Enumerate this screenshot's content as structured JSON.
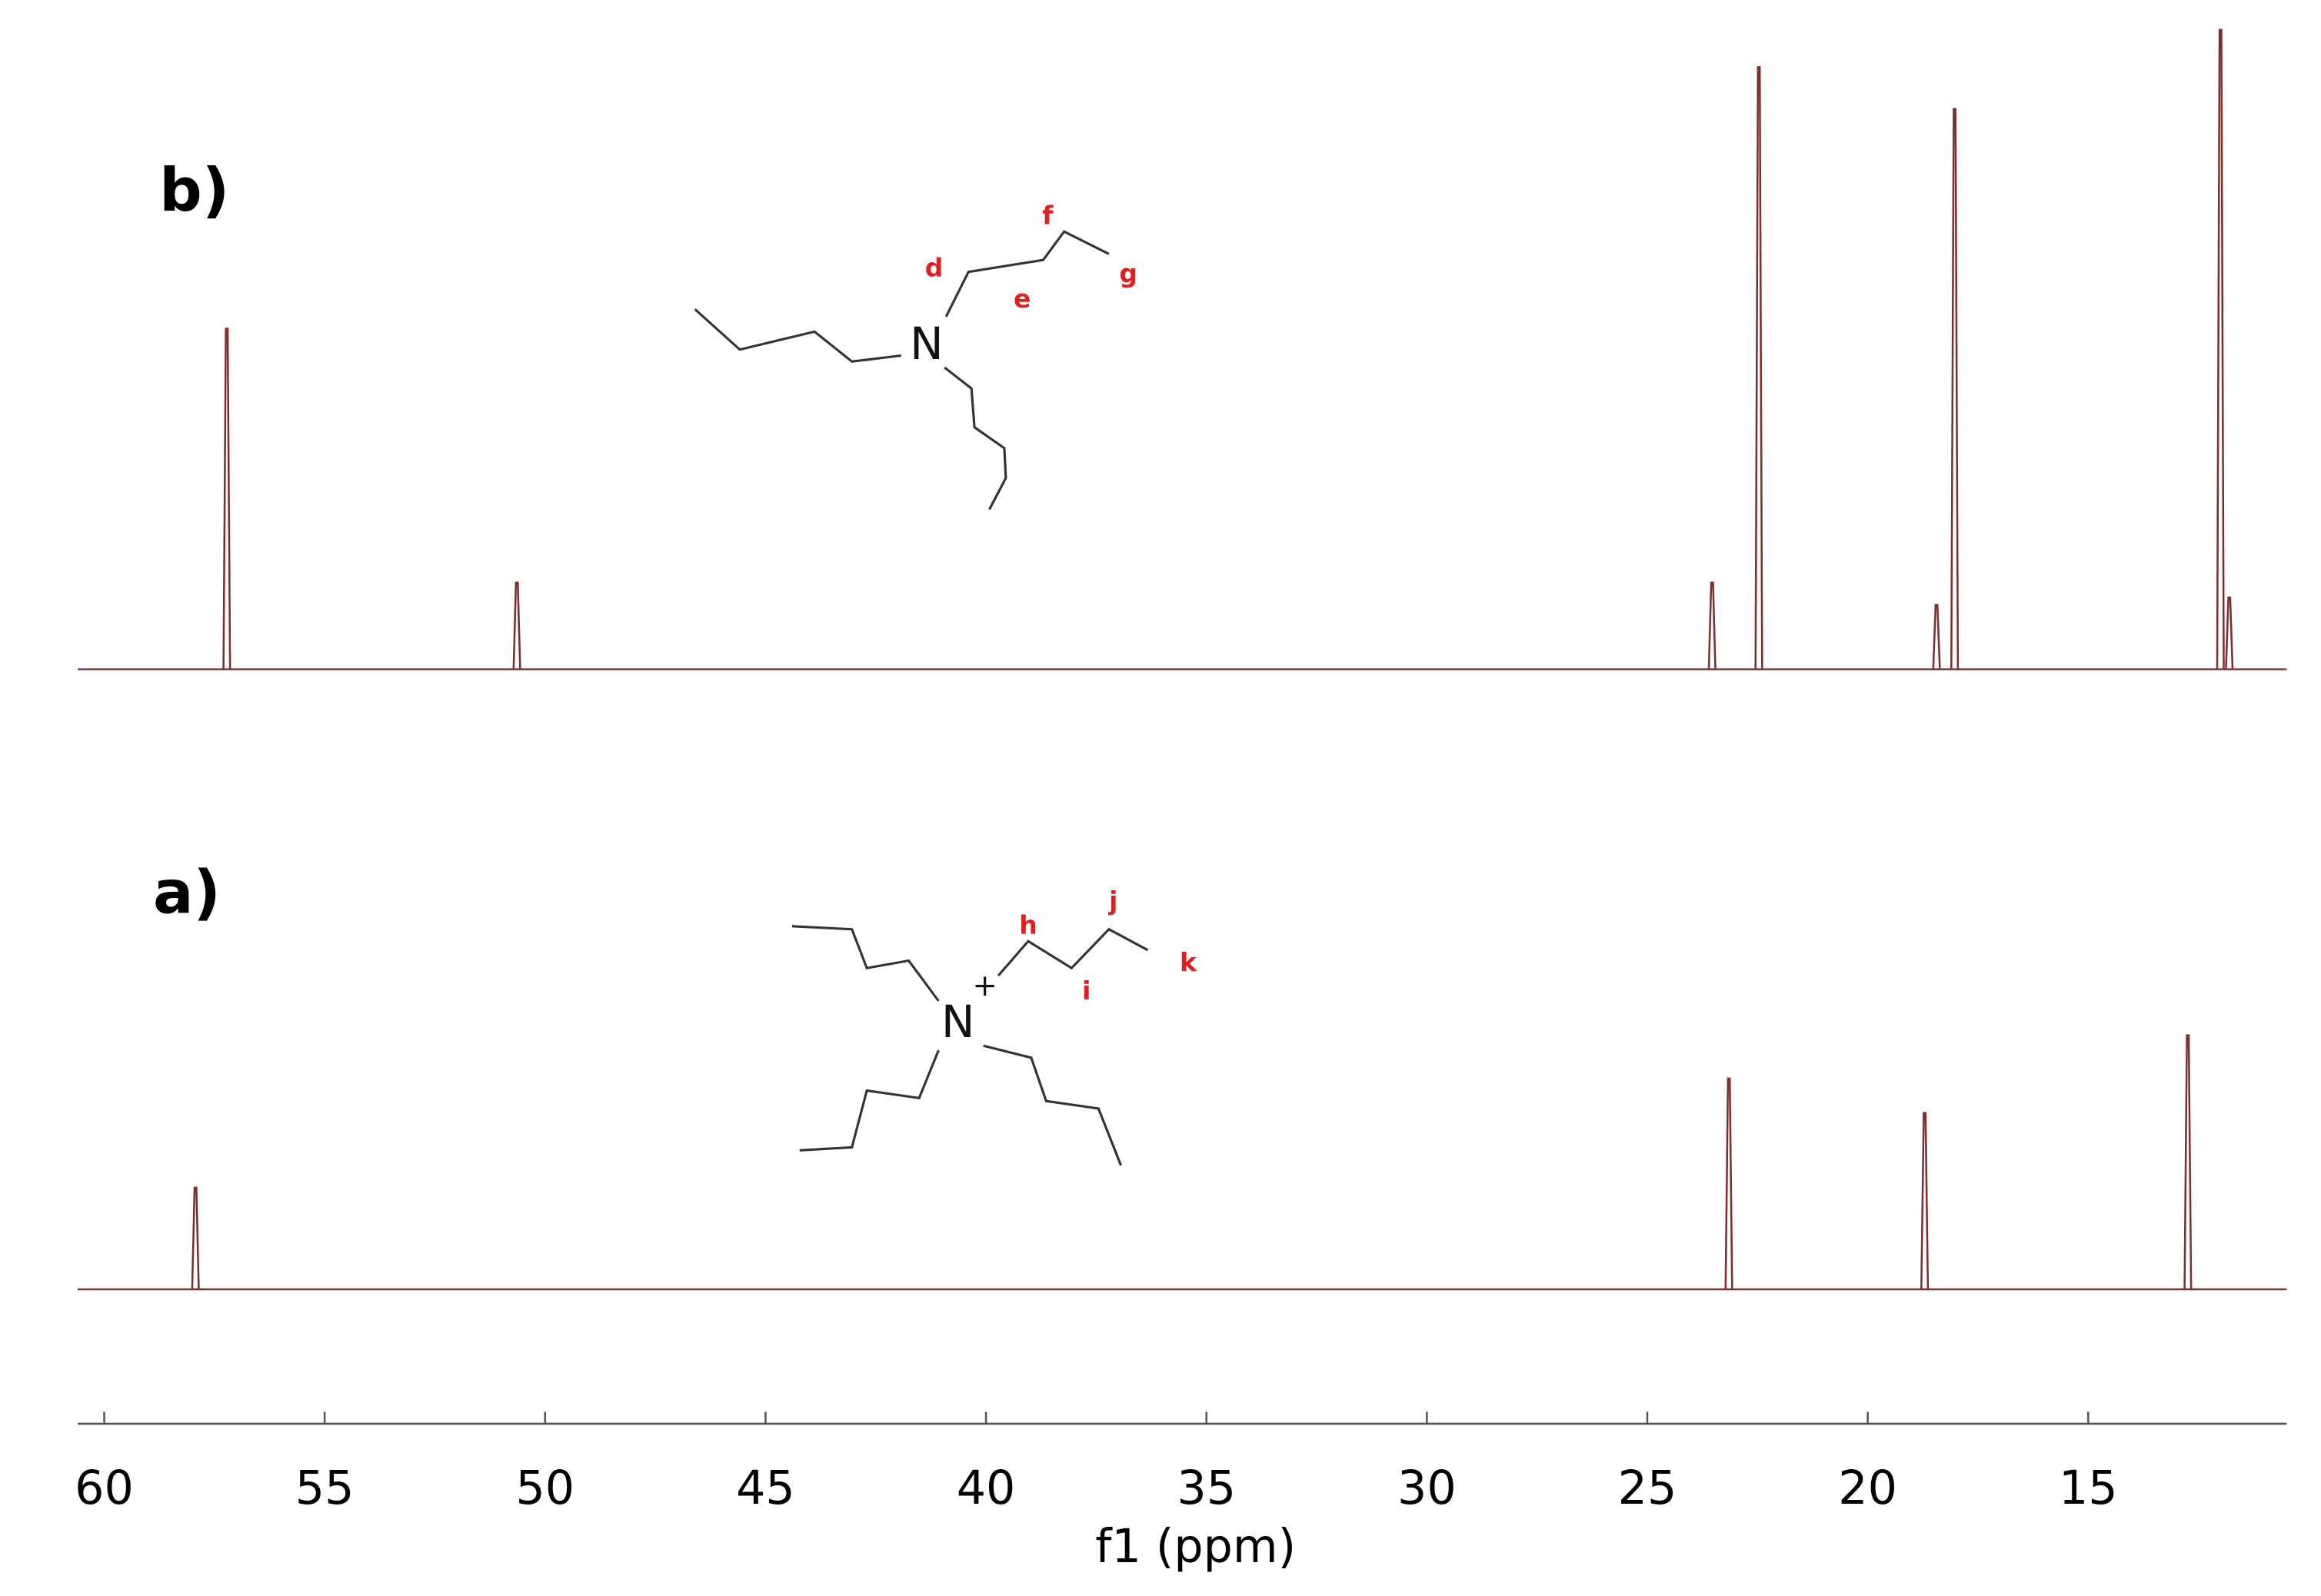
{
  "chart_data": {
    "type": "spectrum",
    "x_label": "f1 (ppm)",
    "xlim": [
      60.6,
      10.5
    ],
    "xticks": [
      60,
      55,
      50,
      45,
      40,
      35,
      30,
      25,
      20,
      15
    ],
    "series": [
      {
        "name": "b)",
        "color": "#7d2e2e",
        "x": [
          57.22,
          50.64,
          23.53,
          22.47,
          18.44,
          18.03,
          12.0,
          11.8
        ],
        "values": [
          228,
          58,
          58,
          403,
          43,
          375,
          428,
          48
        ]
      },
      {
        "name": "a)",
        "color": "#7d2e2e",
        "x": [
          57.93,
          23.15,
          18.71,
          12.74
        ],
        "values": [
          68,
          141,
          118,
          170
        ]
      }
    ]
  },
  "structures": [
    {
      "atom": "N",
      "labels": [
        "d",
        "e",
        "f",
        "g"
      ]
    },
    {
      "atom": "N",
      "charge": "+",
      "labels": [
        "h",
        "i",
        "j",
        "k"
      ]
    }
  ]
}
